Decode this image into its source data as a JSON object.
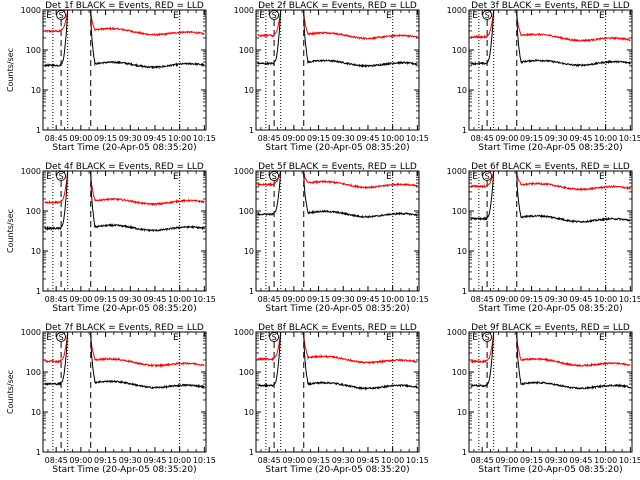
{
  "chart_data": [
    {
      "type": "line",
      "title": "Det 1f BLACK = Events, RED = LLD",
      "xlabel": "Start Time (20-Apr-05 08:35:20)",
      "ylabel": "Counts/sec",
      "y_scale": "log",
      "ylim": [
        1,
        1000
      ],
      "y_ticks": [
        "1",
        "10",
        "100",
        "1000"
      ],
      "x_ticks": [
        "08:45",
        "09:00",
        "09:15",
        "09:30",
        "09:45",
        "10:00",
        "10:15"
      ],
      "grid": false,
      "markers": [
        {
          "label": "E",
          "position": "08:43",
          "style": "dotted"
        },
        {
          "label": "S",
          "position": "08:48",
          "style": "dashed"
        },
        {
          "label": "",
          "position": "08:52",
          "style": "dotted"
        },
        {
          "label": "",
          "position": "09:06",
          "style": "dashed"
        },
        {
          "label": "E",
          "position": "10:00",
          "style": "dotted"
        }
      ],
      "series": [
        {
          "name": "LLD",
          "color": "#ff0000",
          "level": 320,
          "end_level": 240,
          "peak": 1000
        },
        {
          "name": "Events",
          "color": "#000000",
          "level": 45,
          "end_level": 40,
          "peak": 1000
        }
      ]
    },
    {
      "type": "line",
      "title": "Det 2f BLACK = Events, RED = LLD",
      "xlabel": "Start Time (20-Apr-05 08:35:20)",
      "ylabel": "",
      "y_scale": "log",
      "ylim": [
        1,
        1000
      ],
      "y_ticks": [
        "1",
        "10",
        "100",
        "1000"
      ],
      "x_ticks": [
        "08:45",
        "09:00",
        "09:15",
        "09:30",
        "09:45",
        "10:00",
        "10:15"
      ],
      "grid": false,
      "markers": [
        {
          "label": "E",
          "position": "08:43",
          "style": "dotted"
        },
        {
          "label": "S",
          "position": "08:48",
          "style": "dashed"
        },
        {
          "label": "",
          "position": "08:52",
          "style": "dotted"
        },
        {
          "label": "",
          "position": "09:06",
          "style": "dashed"
        },
        {
          "label": "E",
          "position": "10:00",
          "style": "dotted"
        }
      ],
      "series": [
        {
          "name": "LLD",
          "color": "#ff0000",
          "level": 250,
          "end_level": 200,
          "peak": 1000
        },
        {
          "name": "Events",
          "color": "#000000",
          "level": 50,
          "end_level": 42,
          "peak": 1000
        }
      ]
    },
    {
      "type": "line",
      "title": "Det 3f BLACK = Events, RED = LLD",
      "xlabel": "Start Time (20-Apr-05 08:35:20)",
      "ylabel": "",
      "y_scale": "log",
      "ylim": [
        1,
        1000
      ],
      "y_ticks": [
        "1",
        "10",
        "100",
        "1000"
      ],
      "x_ticks": [
        "08:45",
        "09:00",
        "09:15",
        "09:30",
        "09:45",
        "10:00",
        "10:15"
      ],
      "grid": false,
      "markers": [
        {
          "label": "E",
          "position": "08:43",
          "style": "dotted"
        },
        {
          "label": "S",
          "position": "08:48",
          "style": "dashed"
        },
        {
          "label": "",
          "position": "08:52",
          "style": "dotted"
        },
        {
          "label": "",
          "position": "09:06",
          "style": "dashed"
        },
        {
          "label": "E",
          "position": "10:00",
          "style": "dotted"
        }
      ],
      "series": [
        {
          "name": "LLD",
          "color": "#ff0000",
          "level": 230,
          "end_level": 170,
          "peak": 1000
        },
        {
          "name": "Events",
          "color": "#000000",
          "level": 50,
          "end_level": 45,
          "peak": 1000
        }
      ]
    },
    {
      "type": "line",
      "title": "Det 4f BLACK = Events, RED = LLD",
      "xlabel": "Start Time (20-Apr-05 08:35:20)",
      "ylabel": "Counts/sec",
      "y_scale": "log",
      "ylim": [
        1,
        1000
      ],
      "y_ticks": [
        "1",
        "10",
        "100",
        "1000"
      ],
      "x_ticks": [
        "08:45",
        "09:00",
        "09:15",
        "09:30",
        "09:45",
        "10:00",
        "10:15"
      ],
      "grid": false,
      "markers": [
        {
          "label": "E",
          "position": "08:43",
          "style": "dotted"
        },
        {
          "label": "S",
          "position": "08:48",
          "style": "dashed"
        },
        {
          "label": "",
          "position": "08:52",
          "style": "dotted"
        },
        {
          "label": "",
          "position": "09:06",
          "style": "dashed"
        },
        {
          "label": "E",
          "position": "10:00",
          "style": "dotted"
        }
      ],
      "series": [
        {
          "name": "LLD",
          "color": "#ff0000",
          "level": 180,
          "end_level": 160,
          "peak": 1000
        },
        {
          "name": "Events",
          "color": "#000000",
          "level": 40,
          "end_level": 35,
          "peak": 1000
        }
      ]
    },
    {
      "type": "line",
      "title": "Det 5f BLACK = Events, RED = LLD",
      "xlabel": "Start Time (20-Apr-05 08:35:20)",
      "ylabel": "",
      "y_scale": "log",
      "ylim": [
        1,
        1000
      ],
      "y_ticks": [
        "1",
        "10",
        "100",
        "1000"
      ],
      "x_ticks": [
        "08:45",
        "09:00",
        "09:15",
        "09:30",
        "09:45",
        "10:00",
        "10:15"
      ],
      "grid": false,
      "markers": [
        {
          "label": "E",
          "position": "08:43",
          "style": "dotted"
        },
        {
          "label": "S",
          "position": "08:48",
          "style": "dashed"
        },
        {
          "label": "",
          "position": "08:52",
          "style": "dotted"
        },
        {
          "label": "",
          "position": "09:06",
          "style": "dashed"
        },
        {
          "label": "E",
          "position": "10:00",
          "style": "dotted"
        }
      ],
      "series": [
        {
          "name": "LLD",
          "color": "#ff0000",
          "level": 500,
          "end_level": 400,
          "peak": 1000
        },
        {
          "name": "Events",
          "color": "#000000",
          "level": 90,
          "end_level": 75,
          "peak": 1000
        }
      ]
    },
    {
      "type": "line",
      "title": "Det 6f BLACK = Events, RED = LLD",
      "xlabel": "Start Time (20-Apr-05 08:35:20)",
      "ylabel": "",
      "y_scale": "log",
      "ylim": [
        1,
        1000
      ],
      "y_ticks": [
        "1",
        "10",
        "100",
        "1000"
      ],
      "x_ticks": [
        "08:45",
        "09:00",
        "09:15",
        "09:30",
        "09:45",
        "10:00",
        "10:15"
      ],
      "grid": false,
      "markers": [
        {
          "label": "E",
          "position": "08:43",
          "style": "dotted"
        },
        {
          "label": "S",
          "position": "08:48",
          "style": "dashed"
        },
        {
          "label": "",
          "position": "08:52",
          "style": "dotted"
        },
        {
          "label": "",
          "position": "09:06",
          "style": "dashed"
        },
        {
          "label": "E",
          "position": "10:00",
          "style": "dotted"
        }
      ],
      "series": [
        {
          "name": "LLD",
          "color": "#ff0000",
          "level": 450,
          "end_level": 350,
          "peak": 1000
        },
        {
          "name": "Events",
          "color": "#000000",
          "level": 70,
          "end_level": 55,
          "peak": 1000
        }
      ]
    },
    {
      "type": "line",
      "title": "Det 7f BLACK = Events, RED = LLD",
      "xlabel": "Start Time (20-Apr-05 08:35:20)",
      "ylabel": "Counts/sec",
      "y_scale": "log",
      "ylim": [
        1,
        1000
      ],
      "y_ticks": [
        "1",
        "10",
        "100",
        "1000"
      ],
      "x_ticks": [
        "08:45",
        "09:00",
        "09:15",
        "09:30",
        "09:45",
        "10:00",
        "10:15"
      ],
      "grid": false,
      "markers": [
        {
          "label": "E",
          "position": "08:43",
          "style": "dotted"
        },
        {
          "label": "S",
          "position": "08:48",
          "style": "dashed"
        },
        {
          "label": "",
          "position": "08:52",
          "style": "dotted"
        },
        {
          "label": "",
          "position": "09:06",
          "style": "dashed"
        },
        {
          "label": "E",
          "position": "10:00",
          "style": "dotted"
        }
      ],
      "series": [
        {
          "name": "LLD",
          "color": "#ff0000",
          "level": 200,
          "end_level": 140,
          "peak": 1000
        },
        {
          "name": "Events",
          "color": "#000000",
          "level": 55,
          "end_level": 40,
          "peak": 1000
        }
      ]
    },
    {
      "type": "line",
      "title": "Det 8f BLACK = Events, RED = LLD",
      "xlabel": "Start Time (20-Apr-05 08:35:20)",
      "ylabel": "",
      "y_scale": "log",
      "ylim": [
        1,
        1000
      ],
      "y_ticks": [
        "1",
        "10",
        "100",
        "1000"
      ],
      "x_ticks": [
        "08:45",
        "09:00",
        "09:15",
        "09:30",
        "09:45",
        "10:00",
        "10:15"
      ],
      "grid": false,
      "markers": [
        {
          "label": "E",
          "position": "08:43",
          "style": "dotted"
        },
        {
          "label": "S",
          "position": "08:48",
          "style": "dashed"
        },
        {
          "label": "",
          "position": "08:52",
          "style": "dotted"
        },
        {
          "label": "",
          "position": "09:06",
          "style": "dashed"
        },
        {
          "label": "E",
          "position": "10:00",
          "style": "dotted"
        }
      ],
      "series": [
        {
          "name": "LLD",
          "color": "#ff0000",
          "level": 230,
          "end_level": 170,
          "peak": 1000
        },
        {
          "name": "Events",
          "color": "#000000",
          "level": 50,
          "end_level": 40,
          "peak": 1000
        }
      ]
    },
    {
      "type": "line",
      "title": "Det 9f BLACK = Events, RED = LLD",
      "xlabel": "Start Time (20-Apr-05 08:35:20)",
      "ylabel": "",
      "y_scale": "log",
      "ylim": [
        1,
        1000
      ],
      "y_ticks": [
        "1",
        "10",
        "100",
        "1000"
      ],
      "x_ticks": [
        "08:45",
        "09:00",
        "09:15",
        "09:30",
        "09:45",
        "10:00",
        "10:15"
      ],
      "grid": false,
      "markers": [
        {
          "label": "E",
          "position": "08:43",
          "style": "dotted"
        },
        {
          "label": "S",
          "position": "08:48",
          "style": "dashed"
        },
        {
          "label": "",
          "position": "08:52",
          "style": "dotted"
        },
        {
          "label": "",
          "position": "09:06",
          "style": "dashed"
        },
        {
          "label": "E",
          "position": "10:00",
          "style": "dotted"
        }
      ],
      "series": [
        {
          "name": "LLD",
          "color": "#ff0000",
          "level": 200,
          "end_level": 140,
          "peak": 1000
        },
        {
          "name": "Events",
          "color": "#000000",
          "level": 50,
          "end_level": 40,
          "peak": 1000
        }
      ]
    }
  ]
}
